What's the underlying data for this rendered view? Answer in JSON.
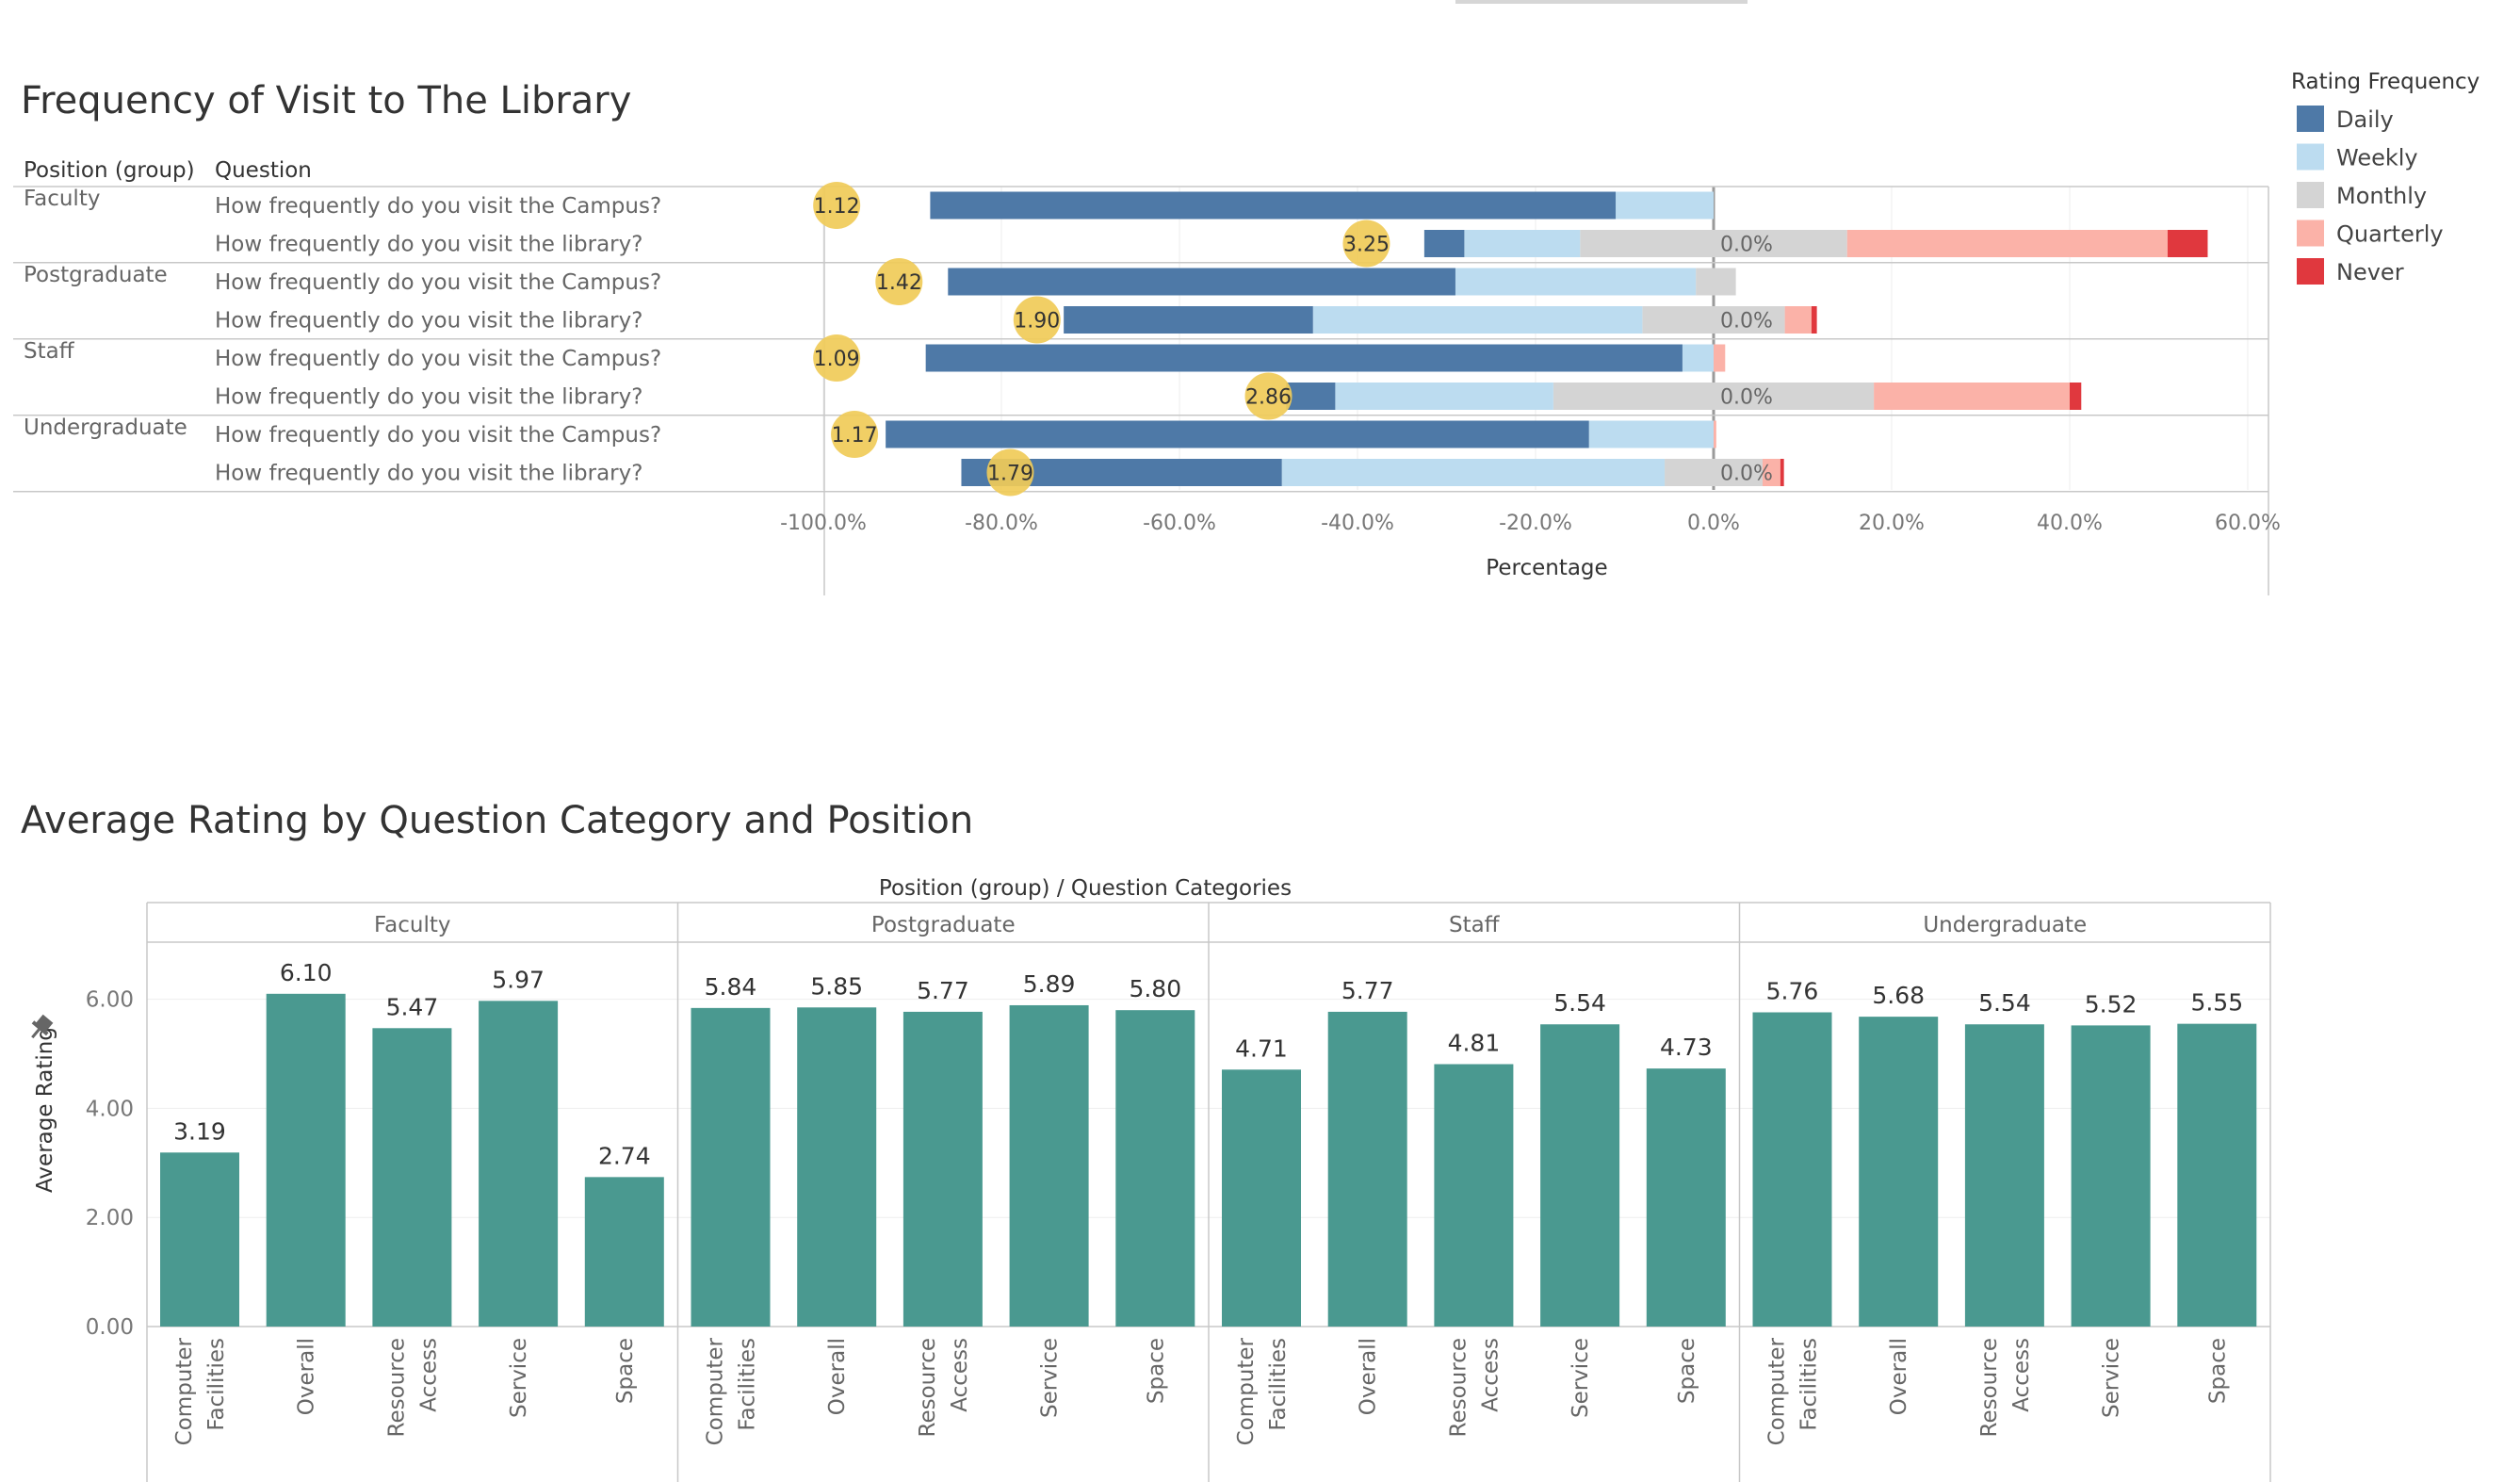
{
  "chart_data": [
    {
      "type": "bar",
      "orientation": "horizontal-diverging-stacked",
      "title": "Frequency of Visit to The Library",
      "row_headers": [
        "Position (group)",
        "Question"
      ],
      "groups": [
        "Faculty",
        "Postgraduate",
        "Staff",
        "Undergraduate"
      ],
      "questions": [
        "How frequently do you visit the Campus?",
        "How frequently do you visit the library?"
      ],
      "xlabel": "Percentage",
      "xlim": [
        -100,
        65
      ],
      "xticks": [
        -100,
        -80,
        -60,
        -40,
        -20,
        0,
        20,
        40,
        60
      ],
      "xtick_labels": [
        "-100.0%",
        "-80.0%",
        "-60.0%",
        "-40.0%",
        "-20.0%",
        "0.0%",
        "20.0%",
        "40.0%",
        "60.0%"
      ],
      "legend": {
        "title": "Rating Frequency",
        "position": "top-right",
        "entries": [
          {
            "label": "Daily",
            "color": "#4e79a7"
          },
          {
            "label": "Weekly",
            "color": "#bcdcf0"
          },
          {
            "label": "Monthly",
            "color": "#d4d4d4"
          },
          {
            "label": "Quarterly",
            "color": "#fbb2a8"
          },
          {
            "label": "Never",
            "color": "#e0383e"
          }
        ]
      },
      "series_order_negative": [
        "Monthly",
        "Weekly",
        "Daily"
      ],
      "series_order_positive": [
        "Monthly",
        "Quarterly",
        "Never"
      ],
      "rows": [
        {
          "group": "Faculty",
          "question": "How frequently do you visit the Campus?",
          "avg": "1.12",
          "avg_pos": -98.5,
          "zero_label": "",
          "negative": {
            "Monthly": 0,
            "Weekly": 11,
            "Daily": 77
          },
          "positive": {
            "Monthly": 0,
            "Quarterly": 0,
            "Never": 0
          }
        },
        {
          "group": "Faculty",
          "question": "How frequently do you visit the library?",
          "avg": "3.25",
          "avg_pos": -39,
          "zero_label": "0.0%",
          "negative": {
            "Monthly": 15,
            "Weekly": 13,
            "Daily": 4.5
          },
          "positive": {
            "Monthly": 15,
            "Quarterly": 36,
            "Never": 4.5
          }
        },
        {
          "group": "Postgraduate",
          "question": "How frequently do you visit the Campus?",
          "avg": "1.42",
          "avg_pos": -91.5,
          "zero_label": "",
          "negative": {
            "Monthly": 2,
            "Weekly": 27,
            "Daily": 57
          },
          "positive": {
            "Monthly": 2.5,
            "Quarterly": 0,
            "Never": 0
          }
        },
        {
          "group": "Postgraduate",
          "question": "How frequently do you visit the library?",
          "avg": "1.90",
          "avg_pos": -76,
          "zero_label": "0.0%",
          "negative": {
            "Monthly": 8,
            "Weekly": 37,
            "Daily": 28
          },
          "positive": {
            "Monthly": 8,
            "Quarterly": 3,
            "Never": 0.6
          }
        },
        {
          "group": "Staff",
          "question": "How frequently do you visit the Campus?",
          "avg": "1.09",
          "avg_pos": -98.5,
          "zero_label": "",
          "negative": {
            "Monthly": 0,
            "Weekly": 3.5,
            "Daily": 85
          },
          "positive": {
            "Monthly": 0,
            "Quarterly": 1.3,
            "Never": 0
          }
        },
        {
          "group": "Staff",
          "question": "How frequently do you visit the library?",
          "avg": "2.86",
          "avg_pos": -50,
          "zero_label": "0.0%",
          "negative": {
            "Monthly": 18,
            "Weekly": 24.5,
            "Daily": 5.5
          },
          "positive": {
            "Monthly": 18,
            "Quarterly": 22,
            "Never": 1.3
          }
        },
        {
          "group": "Undergraduate",
          "question": "How frequently do you visit the Campus?",
          "avg": "1.17",
          "avg_pos": -96.5,
          "zero_label": "",
          "negative": {
            "Monthly": 0,
            "Weekly": 14,
            "Daily": 79
          },
          "positive": {
            "Monthly": 0,
            "Quarterly": 0.3,
            "Never": 0
          }
        },
        {
          "group": "Undergraduate",
          "question": "How frequently do you visit the library?",
          "avg": "1.79",
          "avg_pos": -79,
          "zero_label": "0.0%",
          "negative": {
            "Monthly": 5.5,
            "Weekly": 43,
            "Daily": 36
          },
          "positive": {
            "Monthly": 5.5,
            "Quarterly": 2,
            "Never": 0.4
          }
        }
      ]
    },
    {
      "type": "bar",
      "title": "Average Rating by Question Category and Position",
      "header": "Position (group)  /  Question Categories",
      "ylabel": "Average Rating",
      "ylim": [
        0,
        7
      ],
      "yticks": [
        0,
        2,
        4,
        6
      ],
      "ytick_labels": [
        "0.00",
        "2.00",
        "4.00",
        "6.00"
      ],
      "bar_color": "#4a9990",
      "groups": [
        {
          "name": "Faculty",
          "categories": [
            [
              "Computer",
              "Facilities"
            ],
            [
              "Overall"
            ],
            [
              "Resource",
              "Access"
            ],
            [
              "Service"
            ],
            [
              "Space"
            ]
          ],
          "values": [
            3.19,
            6.1,
            5.47,
            5.97,
            2.74
          ],
          "labels": [
            "3.19",
            "6.10",
            "5.47",
            "5.97",
            "2.74"
          ]
        },
        {
          "name": "Postgraduate",
          "categories": [
            [
              "Computer",
              "Facilities"
            ],
            [
              "Overall"
            ],
            [
              "Resource",
              "Access"
            ],
            [
              "Service"
            ],
            [
              "Space"
            ]
          ],
          "values": [
            5.84,
            5.85,
            5.77,
            5.89,
            5.8
          ],
          "labels": [
            "5.84",
            "5.85",
            "5.77",
            "5.89",
            "5.80"
          ]
        },
        {
          "name": "Staff",
          "categories": [
            [
              "Computer",
              "Facilities"
            ],
            [
              "Overall"
            ],
            [
              "Resource",
              "Access"
            ],
            [
              "Service"
            ],
            [
              "Space"
            ]
          ],
          "values": [
            4.71,
            5.77,
            4.81,
            5.54,
            4.73
          ],
          "labels": [
            "4.71",
            "5.77",
            "4.81",
            "5.54",
            "4.73"
          ]
        },
        {
          "name": "Undergraduate",
          "categories": [
            [
              "Computer",
              "Facilities"
            ],
            [
              "Overall"
            ],
            [
              "Resource",
              "Access"
            ],
            [
              "Service"
            ],
            [
              "Space"
            ]
          ],
          "values": [
            5.76,
            5.68,
            5.54,
            5.52,
            5.55
          ],
          "labels": [
            "5.76",
            "5.68",
            "5.54",
            "5.52",
            "5.55"
          ]
        }
      ]
    }
  ],
  "colors": {
    "text_dark": "#333333",
    "text_light": "#666666",
    "tick_text": "#777777",
    "grid": "#eeeeee",
    "border": "#c8c8c8",
    "avg_circle": "#f0cb58"
  }
}
